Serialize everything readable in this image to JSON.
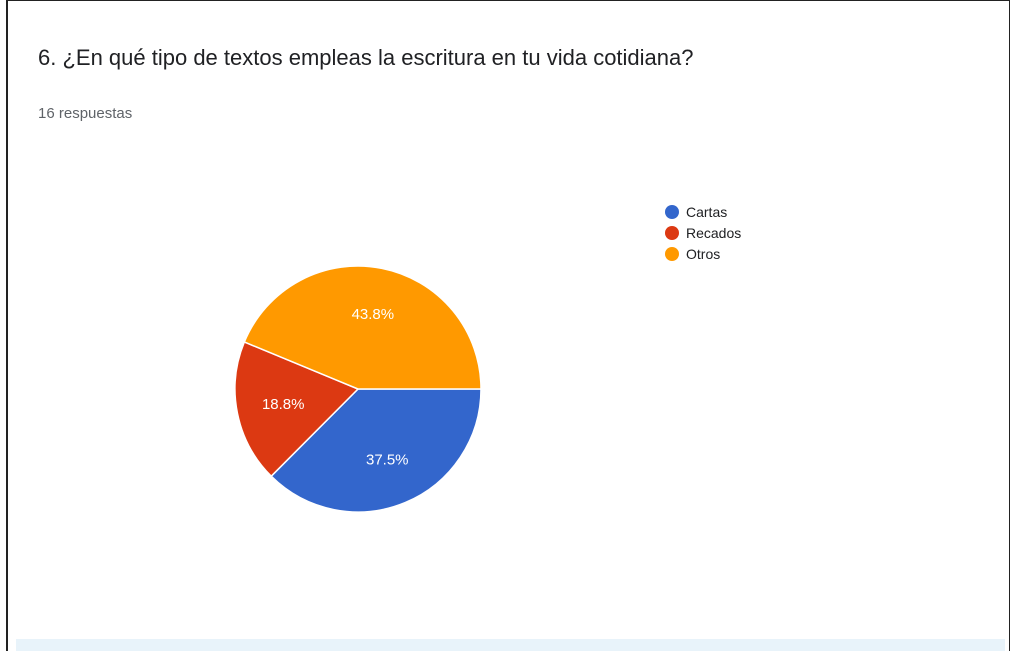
{
  "question": {
    "title": "6. ¿En qué tipo de textos empleas la escritura en tu vida cotidiana?",
    "responses": "16 respuestas"
  },
  "chart_data": {
    "type": "pie",
    "title": "6. ¿En qué tipo de textos empleas la escritura en tu vida cotidiana?",
    "categories": [
      "Cartas",
      "Recados",
      "Otros"
    ],
    "values": [
      37.5,
      18.8,
      43.8
    ],
    "labels": [
      "37.5%",
      "18.8%",
      "43.8%"
    ],
    "colors": [
      "#3366cc",
      "#dc3912",
      "#ff9900"
    ],
    "legend": "right"
  }
}
